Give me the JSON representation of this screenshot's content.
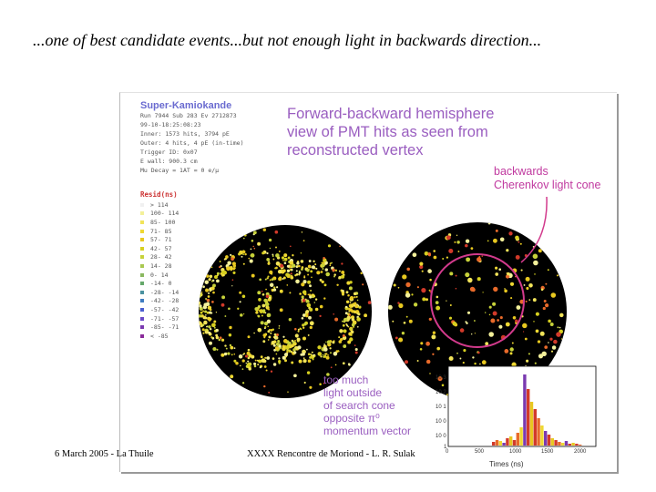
{
  "slide": {
    "title": "...one of best candidate events...but not enough light in backwards direction...",
    "footer_left": "6 March 2005 - La Thuile",
    "footer_center": "XXXX Rencontre de Moriond - L. R. Sulak"
  },
  "figure": {
    "sk_title": "Super-Kamiokande",
    "sk_info_lines": [
      "Run 7944 Sub 283 Ev 2712873",
      "99-10-18:25:08:23",
      "Inner: 1573 hits, 3794 pE",
      "Outer: 4 hits, 4 pE (in-time)",
      "Trigger ID: 0x07",
      "E wall: 900.3 cm",
      "Mu Decay = 1AT = 0 e/μ"
    ],
    "legend_title": "Resid(ns)",
    "legend_rows": [
      {
        "label": "> 114",
        "color": "#ffffff"
      },
      {
        "label": "100- 114",
        "color": "#f3f09a"
      },
      {
        "label": "85- 100",
        "color": "#f2e45a"
      },
      {
        "label": "71- 85",
        "color": "#efd832"
      },
      {
        "label": "57- 71",
        "color": "#e8c820"
      },
      {
        "label": "42- 57",
        "color": "#d7d020"
      },
      {
        "label": "28- 42",
        "color": "#c7d23a"
      },
      {
        "label": "14- 28",
        "color": "#a9c850"
      },
      {
        "label": "0- 14",
        "color": "#8ab860"
      },
      {
        "label": "-14- 0",
        "color": "#65a86a"
      },
      {
        "label": "-28- -14",
        "color": "#4a92a0"
      },
      {
        "label": "-42- -28",
        "color": "#3f7cc0"
      },
      {
        "label": "-57- -42",
        "color": "#4a5ed0"
      },
      {
        "label": "-71- -57",
        "color": "#6a4ac8"
      },
      {
        "label": "-85- -71",
        "color": "#7a3ab0"
      },
      {
        "label": "< -85",
        "color": "#8a2a9a"
      }
    ],
    "headline": [
      "Forward-backward hemisphere",
      "view of PMT hits as seen from",
      "reconstructed vertex"
    ],
    "backwards_label": [
      "backwards",
      "Cherenkov light cone"
    ],
    "too_much_label": [
      "too much",
      "light outside",
      "of search cone",
      "opposite π⁰",
      "momentum vector"
    ],
    "colors": {
      "headline": "#9a5ec0",
      "backwards": "#c0399f",
      "cone_circle": "#d23a8c",
      "legend_title": "#cc3333"
    },
    "histogram": {
      "xlabel": "Times (ns)",
      "x_ticks": [
        "0",
        "500",
        "1000",
        "1500",
        "2000"
      ],
      "y_ticks": [
        "10 3",
        "10 2",
        "10 1",
        "10 0",
        "10 0",
        "1"
      ]
    }
  }
}
